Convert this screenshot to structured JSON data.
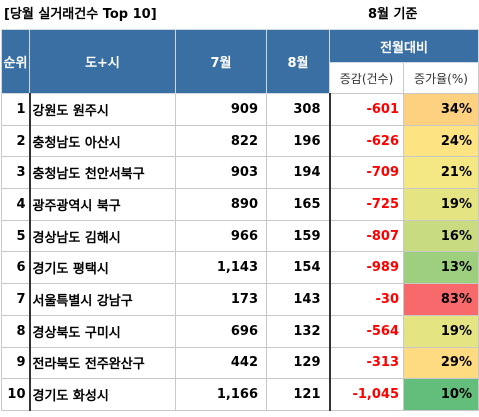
{
  "title": "[당월 실거래건수 Top 10]",
  "basis": "8월 기준",
  "headers": {
    "rank": "순위",
    "region": "도+시",
    "jul": "7월",
    "aug": "8월",
    "mom": "전월대비",
    "diff": "증감(건수)",
    "rate": "증가율(%)"
  },
  "rows": [
    {
      "rank": "1",
      "region": "강원도 원주시",
      "jul": "909",
      "aug": "308",
      "diff": "-601",
      "rate": "34%",
      "rate_color": "#fdd17f"
    },
    {
      "rank": "2",
      "region": "충청남도 아산시",
      "jul": "822",
      "aug": "196",
      "diff": "-626",
      "rate": "24%",
      "rate_color": "#fee383"
    },
    {
      "rank": "3",
      "region": "충청남도 천안서북구",
      "jul": "903",
      "aug": "194",
      "diff": "-709",
      "rate": "21%",
      "rate_color": "#f4e884"
    },
    {
      "rank": "4",
      "region": "광주광역시 북구",
      "jul": "890",
      "aug": "165",
      "diff": "-725",
      "rate": "19%",
      "rate_color": "#e4e483"
    },
    {
      "rank": "5",
      "region": "경상남도 김해시",
      "jul": "966",
      "aug": "159",
      "diff": "-807",
      "rate": "16%",
      "rate_color": "#c9db81"
    },
    {
      "rank": "6",
      "region": "경기도 평택시",
      "jul": "1,143",
      "aug": "154",
      "diff": "-989",
      "rate": "13%",
      "rate_color": "#9dcf7e"
    },
    {
      "rank": "7",
      "region": "서울특별시 강남구",
      "jul": "173",
      "aug": "143",
      "diff": "-30",
      "rate": "83%",
      "rate_color": "#f8696b"
    },
    {
      "rank": "8",
      "region": "경상북도 구미시",
      "jul": "696",
      "aug": "132",
      "diff": "-564",
      "rate": "19%",
      "rate_color": "#e4e483"
    },
    {
      "rank": "9",
      "region": "전라북도 전주완산구",
      "jul": "442",
      "aug": "129",
      "diff": "-313",
      "rate": "29%",
      "rate_color": "#fedb81"
    },
    {
      "rank": "10",
      "region": "경기도 화성시",
      "jul": "1,166",
      "aug": "121",
      "diff": "-1,045",
      "rate": "10%",
      "rate_color": "#63be7b"
    }
  ]
}
